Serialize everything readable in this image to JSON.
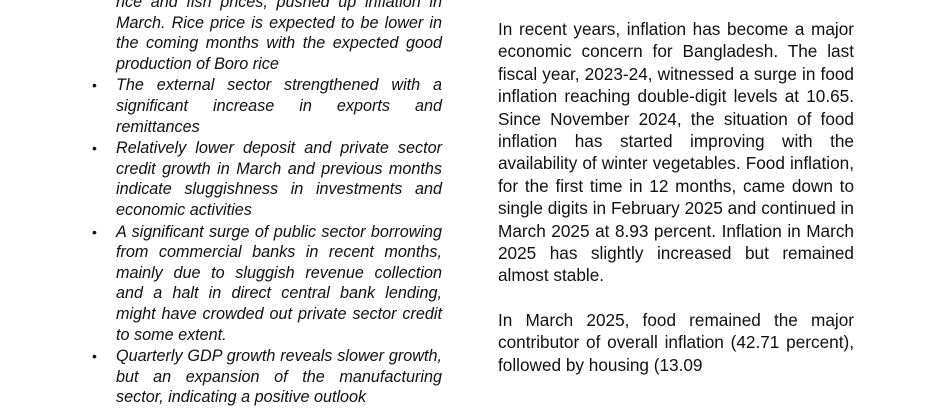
{
  "left_column": {
    "continued_text": "rice and fish prices, pushed up inflation in March. Rice price is expected to be lower in the coming months with the expected good production of Boro rice",
    "bullets": [
      "The external sector strengthened with a significant increase in exports and remittances",
      "Relatively lower deposit and private sector credit growth in March and previous months indicate sluggishness in investments and economic activities",
      "A significant surge of public sector borrowing from commercial banks in recent months, mainly due to sluggish revenue collection and a halt in direct central bank lending, might have crowded out private sector credit to some extent.",
      "Quarterly GDP growth reveals slower growth, but an expansion of the manufacturing sector, indicating a positive outlook"
    ],
    "bullet_symbol": "•"
  },
  "right_column": {
    "paragraphs": [
      "In recent years, inflation has become a major economic concern for Bangladesh. The last fiscal year, 2023-24, witnessed a surge in food inflation reaching double-digit levels at 10.65. Since November 2024, the situation of food inflation has started improving with the availability of winter vegetables. Food inflation, for the first time in 12 months, came down to single digits in February 2025 and continued in March 2025 at 8.93 percent. Inflation in March 2025 has slightly increased but remained almost stable.",
      "In March 2025, food remained the major contributor of overall inflation (42.71 percent), followed by housing (13.09"
    ]
  }
}
